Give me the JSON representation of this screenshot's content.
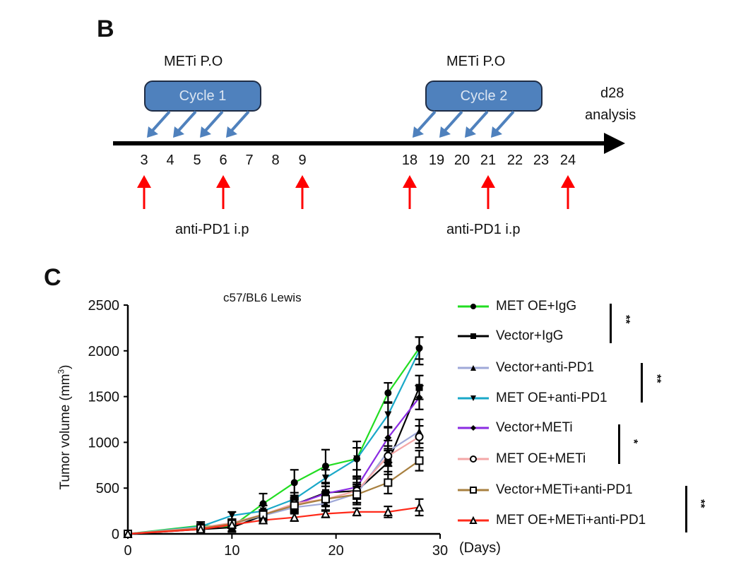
{
  "panel_b": {
    "letter": "B",
    "cycles": [
      {
        "label": "Cycle 1",
        "header": "METi P.O",
        "arrow_days": [
          3,
          4,
          5,
          6
        ]
      },
      {
        "label": "Cycle 2",
        "header": "METi P.O",
        "arrow_days": [
          18,
          19,
          20,
          21
        ]
      }
    ],
    "days": [
      "3",
      "4",
      "5",
      "6",
      "7",
      "8",
      "9",
      "18",
      "19",
      "20",
      "21",
      "22",
      "23",
      "24"
    ],
    "endpoint_label_line1": "d28",
    "endpoint_label_line2": "analysis",
    "injection_days": [
      3,
      6,
      9,
      18,
      21,
      24
    ],
    "injection_label_1": "anti-PD1 i.p",
    "injection_label_2": "anti-PD1 i.p",
    "colors": {
      "cycle_fill": "#4f81bd",
      "cycle_arrow": "#4f81bd",
      "injection_arrow": "#ff0000"
    }
  },
  "panel_c": {
    "letter": "C"
  },
  "chart_data": {
    "type": "line",
    "title": "c57/BL6 Lewis",
    "xlabel": "(Days)",
    "ylabel": "Tumor volume (mm³)",
    "xlim": [
      0,
      30
    ],
    "ylim": [
      0,
      2500
    ],
    "xticks": [
      0,
      10,
      20,
      30
    ],
    "yticks": [
      0,
      500,
      1000,
      1500,
      2000,
      2500
    ],
    "grid": false,
    "legend_position": "right",
    "x": [
      0,
      7,
      10,
      13,
      16,
      19,
      22,
      25,
      28
    ],
    "series": [
      {
        "name": "MET OE+IgG",
        "color": "#22dd22",
        "marker": "circle-filled",
        "values": [
          0,
          90,
          80,
          330,
          560,
          740,
          820,
          1540,
          2030
        ],
        "errors": [
          0,
          40,
          60,
          110,
          140,
          180,
          190,
          110,
          120
        ]
      },
      {
        "name": "Vector+IgG",
        "color": "#000000",
        "marker": "square-filled",
        "values": [
          0,
          50,
          70,
          200,
          320,
          450,
          470,
          780,
          1600
        ],
        "errors": [
          0,
          30,
          40,
          60,
          80,
          100,
          150,
          130,
          130
        ]
      },
      {
        "name": "Vector+anti-PD1",
        "color": "#9fa8d8",
        "marker": "triangle-up-filled",
        "values": [
          0,
          60,
          110,
          200,
          290,
          330,
          440,
          900,
          1120
        ],
        "errors": [
          0,
          30,
          40,
          50,
          60,
          80,
          100,
          120,
          130
        ]
      },
      {
        "name": "MET OE+anti-PD1",
        "color": "#1aa8c8",
        "marker": "triangle-down-filled",
        "values": [
          0,
          80,
          200,
          250,
          380,
          610,
          820,
          1300,
          2000
        ],
        "errors": [
          0,
          30,
          40,
          60,
          70,
          90,
          120,
          140,
          150
        ]
      },
      {
        "name": "Vector+METi",
        "color": "#8a2be2",
        "marker": "diamond-filled",
        "values": [
          0,
          60,
          120,
          210,
          320,
          440,
          510,
          1050,
          1490
        ],
        "errors": [
          0,
          30,
          40,
          50,
          60,
          80,
          90,
          120,
          130
        ]
      },
      {
        "name": "MET OE+METi",
        "color": "#f4a7a7",
        "marker": "circle-open",
        "values": [
          0,
          70,
          120,
          210,
          330,
          380,
          470,
          850,
          1060
        ],
        "errors": [
          0,
          30,
          40,
          50,
          60,
          80,
          90,
          110,
          120
        ]
      },
      {
        "name": "Vector+METi+anti-PD1",
        "color": "#a88040",
        "marker": "square-open",
        "values": [
          0,
          60,
          110,
          210,
          310,
          380,
          430,
          560,
          800
        ],
        "errors": [
          0,
          30,
          40,
          50,
          60,
          70,
          90,
          120,
          110
        ]
      },
      {
        "name": "MET OE+METi+anti-PD1",
        "color": "#ff2a1a",
        "marker": "triangle-open",
        "values": [
          0,
          50,
          100,
          150,
          180,
          220,
          240,
          240,
          290
        ],
        "errors": [
          0,
          20,
          30,
          30,
          40,
          40,
          40,
          60,
          90
        ]
      }
    ],
    "significance": [
      {
        "pair": [
          "MET OE+IgG",
          "Vector+IgG"
        ],
        "label": "**"
      },
      {
        "pair": [
          "Vector+anti-PD1",
          "MET OE+anti-PD1"
        ],
        "label": "**"
      },
      {
        "pair": [
          "Vector+METi",
          "MET OE+METi"
        ],
        "label": "*"
      },
      {
        "pair": [
          "Vector+METi+anti-PD1",
          "MET OE+METi+anti-PD1"
        ],
        "label": "**"
      }
    ]
  }
}
